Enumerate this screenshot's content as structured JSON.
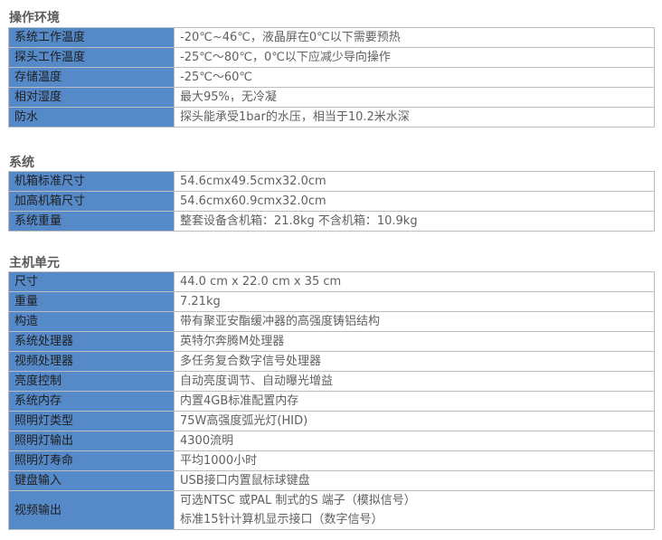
{
  "sections": [
    {
      "title": "操作环境",
      "rows": [
        {
          "label": "系统工作温度",
          "value": "-20℃~46℃，液晶屏在0℃以下需要预热"
        },
        {
          "label": "探头工作温度",
          "value": "-25℃～80℃，0℃以下应减少导向操作"
        },
        {
          "label": "存储温度",
          "value": "-25℃～60℃"
        },
        {
          "label": "相对湿度",
          "value": "最大95%，无冷凝"
        },
        {
          "label": "防水",
          "value": "探头能承受1bar的水压，相当于10.2米水深"
        }
      ]
    },
    {
      "title": "系统",
      "rows": [
        {
          "label": "机箱标准尺寸",
          "value": "54.6cmx49.5cmx32.0cm"
        },
        {
          "label": "加高机箱尺寸",
          "value": "54.6cmx60.9cmx32.0cm"
        },
        {
          "label": "系统重量",
          "value": "整套设备含机箱：21.8kg  不含机箱：10.9kg"
        }
      ]
    },
    {
      "title": "主机单元",
      "rows": [
        {
          "label": "尺寸",
          "value": "44.0 cm x 22.0 cm x 35 cm"
        },
        {
          "label": "重量",
          "value": "7.21kg"
        },
        {
          "label": "构造",
          "value": "带有聚亚安酯缓冲器的高强度铸铝结构"
        },
        {
          "label": "系统处理器",
          "value": "英特尔奔腾M处理器"
        },
        {
          "label": "视频处理器",
          "value": "多任务复合数字信号处理器"
        },
        {
          "label": "亮度控制",
          "value": "自动亮度调节、自动曝光增益"
        },
        {
          "label": "系统内存",
          "value": "内置4GB标准配置内存"
        },
        {
          "label": "照明灯类型",
          "value": "75W高强度弧光灯(HID)"
        },
        {
          "label": "照明灯输出",
          "value": "4300流明"
        },
        {
          "label": "照明灯寿命",
          "value": "平均1000小时"
        },
        {
          "label": "键盘输入",
          "value": "USB接口内置鼠标球键盘"
        },
        {
          "label": "视频输出",
          "value": "可选NTSC 或PAL 制式的S 端子（模拟信号）",
          "value2": "标准15针计算机显示接口（数字信号）"
        }
      ]
    }
  ]
}
